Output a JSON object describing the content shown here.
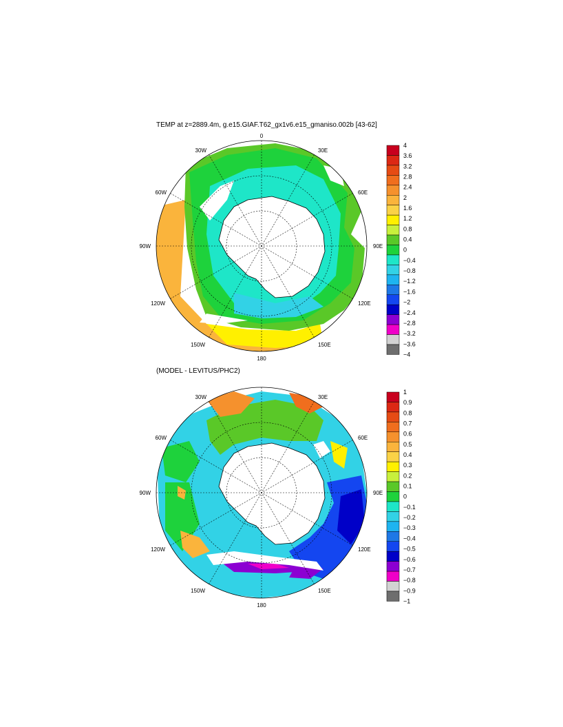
{
  "panels": [
    {
      "title": "TEMP at z=2889.4m, g.e15.GIAF.T62_gx1v6.e15_gmaniso.002b [43-62]",
      "lon_labels": {
        "top": "0",
        "top_right": "30E",
        "right_upper": "60E",
        "right": "90E",
        "right_lower": "120E",
        "bottom_right": "150E",
        "bottom": "180",
        "bottom_left": "150W",
        "left_lower": "120W",
        "left": "90W",
        "left_upper": "60W",
        "top_left": "30W"
      },
      "colorbar": {
        "labels": [
          "4",
          "3.6",
          "3.2",
          "2.8",
          "2.4",
          "2",
          "1.6",
          "1.2",
          "0.8",
          "0.4",
          "0",
          "−0.4",
          "−0.8",
          "−1.2",
          "−1.6",
          "−2",
          "−2.4",
          "−2.8",
          "−3.2",
          "−3.6",
          "−4"
        ],
        "colors": [
          "#c8001e",
          "#dc2814",
          "#e64b14",
          "#f06e1e",
          "#f5912d",
          "#fab43c",
          "#fad246",
          "#fff000",
          "#c8f03c",
          "#5ac828",
          "#1ed23c",
          "#1ee6c8",
          "#32d2e6",
          "#1eb4f0",
          "#1e78e6",
          "#1446f0",
          "#0000c8",
          "#8c00d2",
          "#f000c8",
          "#d2d2d2",
          "#6e6e6e"
        ]
      }
    },
    {
      "title": "(MODEL - LEVITUS/PHC2)",
      "lon_labels": {
        "top": "",
        "top_right": "30E",
        "right_upper": "60E",
        "right": "90E",
        "right_lower": "120E",
        "bottom_right": "150E",
        "bottom": "180",
        "bottom_left": "150W",
        "left_lower": "120W",
        "left": "90W",
        "left_upper": "60W",
        "top_left": "30W"
      },
      "colorbar": {
        "labels": [
          "1",
          "0.9",
          "0.8",
          "0.7",
          "0.6",
          "0.5",
          "0.4",
          "0.3",
          "0.2",
          "0.1",
          "0",
          "−0.1",
          "−0.2",
          "−0.3",
          "−0.4",
          "−0.5",
          "−0.6",
          "−0.7",
          "−0.8",
          "−0.9",
          "−1"
        ],
        "colors": [
          "#c8001e",
          "#dc2814",
          "#e64b14",
          "#f06e1e",
          "#f5912d",
          "#fab43c",
          "#fad246",
          "#fff000",
          "#c8f03c",
          "#5ac828",
          "#1ed23c",
          "#1ee6c8",
          "#32d2e6",
          "#1eb4f0",
          "#1e78e6",
          "#1446f0",
          "#0000c8",
          "#8c00d2",
          "#f000c8",
          "#d2d2d2",
          "#6e6e6e"
        ]
      }
    }
  ]
}
